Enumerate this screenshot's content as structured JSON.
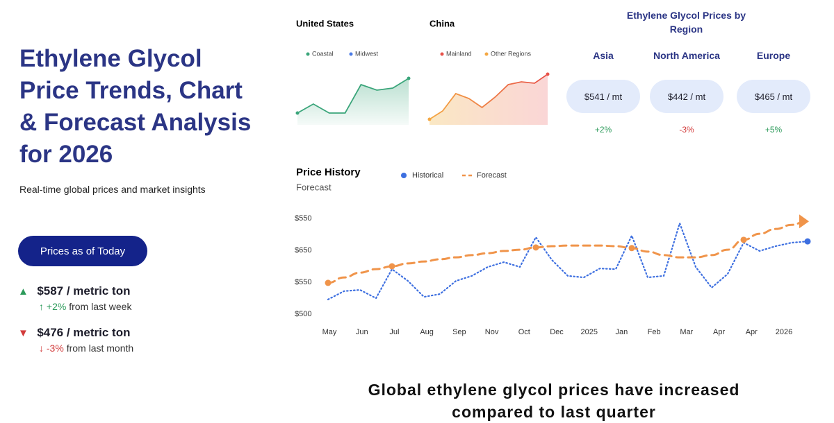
{
  "header": {
    "title": "Ethylene Glycol Price Trends, Chart & Forecast Analysis for 2026",
    "subtitle": "Real-time global prices and market insights",
    "button": "Prices as of Today"
  },
  "prices": [
    {
      "price": "$587 / metric ton",
      "change": "+2%",
      "period": "from last week"
    },
    {
      "price": "$476 / metric ton",
      "change": "-3%",
      "period": "from last month"
    }
  ],
  "regions": {
    "title": "Ethylene Glycol Prices by Region",
    "items": [
      {
        "name": "Asia",
        "price": "$541 / mt",
        "change": "+2%"
      },
      {
        "name": "North America",
        "price": "$442 / mt",
        "change": "-3%"
      },
      {
        "name": "Europe",
        "price": "$465 / mt",
        "change": "+5%"
      }
    ]
  },
  "chart_data": [
    {
      "type": "line",
      "title": "United States",
      "ylim": [
        0,
        80
      ],
      "series": [
        {
          "name": "Coastal",
          "color": "#3aa57a",
          "values": [
            17,
            30,
            17,
            17,
            58,
            50,
            53,
            67
          ]
        },
        {
          "name": "Midwest",
          "color": "#4a7be6",
          "values": [
            null,
            null,
            null,
            null,
            null,
            null,
            null,
            null
          ]
        }
      ]
    },
    {
      "type": "line",
      "title": "China",
      "ylim": [
        0,
        80
      ],
      "series": [
        {
          "name": "Mainland",
          "color": "#e8524a",
          "values": [
            8,
            20,
            45,
            38,
            25,
            40,
            58,
            62,
            60,
            73
          ]
        },
        {
          "name": "Other Regions",
          "color": "#f4a742",
          "values": [
            null,
            null,
            null,
            null,
            null,
            null,
            null,
            null,
            null,
            null
          ]
        }
      ]
    },
    {
      "type": "line",
      "title": "Price History",
      "subtitle": "Forecast",
      "categories": [
        "May",
        "Jun",
        "Jul",
        "Aug",
        "Sep",
        "Nov",
        "Oct",
        "Dec",
        "2025",
        "Jan",
        "Feb",
        "Mar",
        "Apr",
        "Apr",
        "2026"
      ],
      "y_labels": [
        "$550",
        "$650",
        "$550",
        "$500"
      ],
      "xlim": [
        0,
        15
      ],
      "ylim": [
        0,
        3
      ],
      "x": [
        0,
        0.5,
        1,
        1.5,
        2,
        2.5,
        3,
        3.5,
        4,
        4.5,
        5,
        5.5,
        6,
        6.5,
        7,
        7.5,
        8,
        8.5,
        9,
        9.5,
        10,
        10.5,
        11,
        11.5,
        12,
        12.5,
        13,
        13.5,
        14,
        14.5,
        15
      ],
      "series": [
        {
          "name": "Historical",
          "color": "#3d6fe0",
          "style": "dotted",
          "markers": [
            30
          ],
          "values": [
            0.46,
            0.72,
            0.76,
            0.5,
            1.41,
            1.04,
            0.54,
            0.63,
            1.04,
            1.2,
            1.48,
            1.63,
            1.48,
            2.41,
            1.7,
            1.2,
            1.15,
            1.43,
            1.41,
            2.46,
            1.15,
            1.2,
            2.85,
            1.48,
            0.83,
            1.26,
            2.24,
            1.98,
            2.13,
            2.24,
            2.28
          ]
        },
        {
          "name": "Forecast",
          "color": "#f0944a",
          "style": "dashed",
          "markers": [
            0,
            4,
            13,
            19,
            26
          ],
          "values": [
            0.98,
            1.15,
            1.3,
            1.41,
            1.5,
            1.59,
            1.65,
            1.72,
            1.78,
            1.85,
            1.91,
            1.98,
            2.02,
            2.09,
            2.13,
            2.15,
            2.15,
            2.15,
            2.13,
            2.07,
            1.96,
            1.85,
            1.78,
            1.78,
            1.85,
            2.02,
            2.33,
            2.52,
            2.67,
            2.8,
            2.93
          ]
        }
      ]
    }
  ],
  "footer": {
    "text": "Global ethylene glycol prices have increased compared to last quarter"
  }
}
